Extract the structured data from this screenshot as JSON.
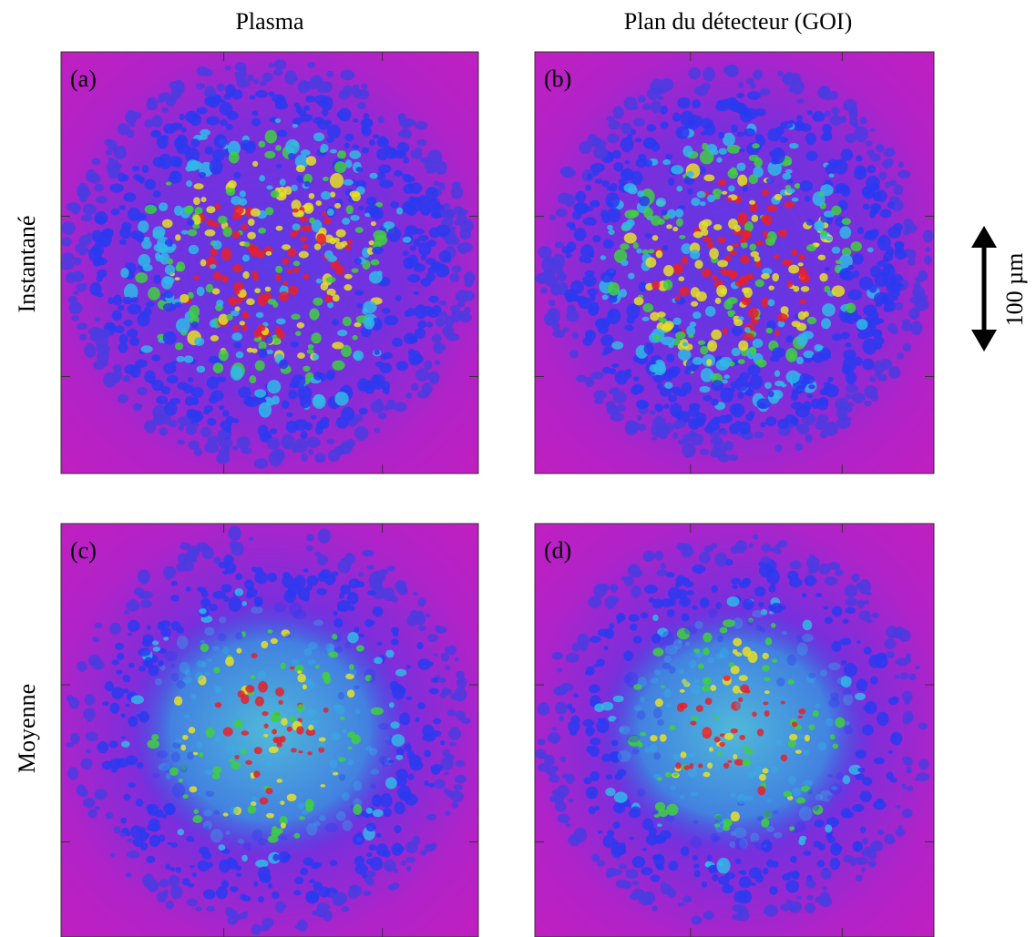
{
  "columns": [
    "Plasma",
    "Plan du détecteur (GOI)"
  ],
  "rows": [
    "Instantané",
    "Moyenne"
  ],
  "panels": [
    "(a)",
    "(b)",
    "(c)",
    "(d)"
  ],
  "scale_bar": "100 µm"
}
